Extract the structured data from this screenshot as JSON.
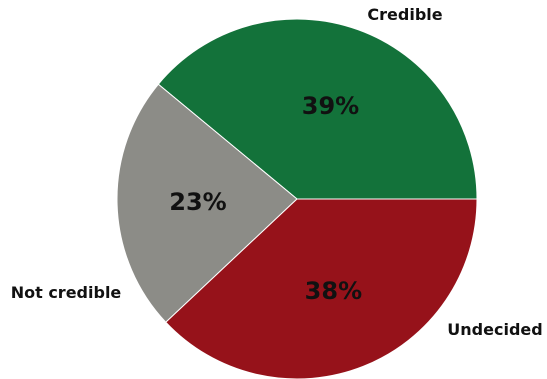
{
  "chart_data": {
    "type": "pie",
    "title": "",
    "slices": [
      {
        "label": "Credible",
        "value": 39,
        "display": "39%",
        "color": "#13723a"
      },
      {
        "label": "Undecided",
        "value": 23,
        "display": "23%",
        "color": "#8c8c87"
      },
      {
        "label": "Not credible",
        "value": 38,
        "display": "38%",
        "color": "#96121a"
      }
    ],
    "start_angle_deg": 0,
    "direction": "counterclockwise"
  }
}
